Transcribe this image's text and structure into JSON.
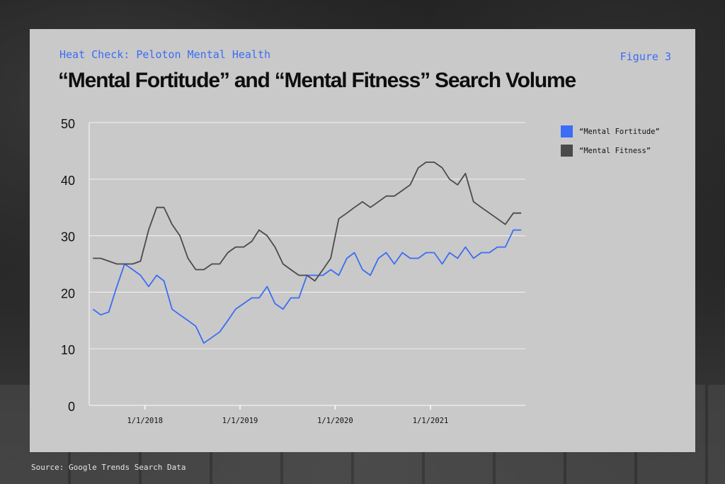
{
  "header": {
    "kicker": "Heat Check: Peloton Mental Health",
    "figure_label": "Figure 3",
    "title": "“Mental Fortitude” and “Mental Fitness” Search Volume"
  },
  "footer": {
    "source": "Source: Google Trends Search Data"
  },
  "colors": {
    "fortitude": "#3b6cf5",
    "fitness": "#4a4a4a",
    "card": "#c9c9c9",
    "grid": "#ebebeb"
  },
  "chart_data": {
    "type": "line",
    "title": "“Mental Fortitude” and “Mental Fitness” Search Volume",
    "xlabel": "",
    "ylabel": "",
    "xlim": [
      "2017-06-01",
      "2021-12-31"
    ],
    "ylim": [
      0,
      50
    ],
    "y_ticks": [
      0,
      10,
      20,
      30,
      40,
      50
    ],
    "x_ticks": [
      "1/1/2018",
      "1/1/2019",
      "1/1/2020",
      "1/1/2021"
    ],
    "grid": true,
    "legend_position": "top-right",
    "x": [
      "2017-06",
      "2017-07",
      "2017-08",
      "2017-09",
      "2017-10",
      "2017-11",
      "2017-12",
      "2018-01",
      "2018-02",
      "2018-03",
      "2018-04",
      "2018-05",
      "2018-06",
      "2018-07",
      "2018-08",
      "2018-09",
      "2018-10",
      "2018-11",
      "2018-12",
      "2019-01",
      "2019-02",
      "2019-03",
      "2019-04",
      "2019-05",
      "2019-06",
      "2019-07",
      "2019-08",
      "2019-09",
      "2019-10",
      "2019-11",
      "2019-12",
      "2020-01",
      "2020-02",
      "2020-03",
      "2020-04",
      "2020-05",
      "2020-06",
      "2020-07",
      "2020-08",
      "2020-09",
      "2020-10",
      "2020-11",
      "2020-12",
      "2021-01",
      "2021-02",
      "2021-03",
      "2021-04",
      "2021-05",
      "2021-06",
      "2021-07",
      "2021-08",
      "2021-09",
      "2021-10",
      "2021-11",
      "2021-12"
    ],
    "series": [
      {
        "name": "“Mental Fortitude”",
        "color": "#3b6cf5",
        "values": [
          17,
          16,
          16.5,
          21,
          25,
          24,
          23,
          21,
          23,
          22,
          17,
          16,
          15,
          14,
          11,
          12,
          13,
          15,
          17,
          18,
          19,
          19,
          21,
          18,
          17,
          19,
          19,
          23,
          23,
          23,
          24,
          23,
          26,
          27,
          24,
          23,
          26,
          27,
          25,
          27,
          26,
          26,
          27,
          27,
          25,
          27,
          26,
          28,
          26,
          27,
          27,
          28,
          28,
          31,
          31
        ]
      },
      {
        "name": "“Mental Fitness”",
        "color": "#4a4a4a",
        "values": [
          26,
          26,
          25.5,
          25,
          25,
          25,
          25.5,
          31,
          35,
          35,
          32,
          30,
          26,
          24,
          24,
          25,
          25,
          27,
          28,
          28,
          29,
          31,
          30,
          28,
          25,
          24,
          23,
          23,
          22,
          24,
          26,
          33,
          34,
          35,
          36,
          35,
          36,
          37,
          37,
          38,
          39,
          42,
          43,
          43,
          42,
          40,
          39,
          41,
          36,
          35,
          34,
          33,
          32,
          34,
          34
        ]
      }
    ]
  }
}
